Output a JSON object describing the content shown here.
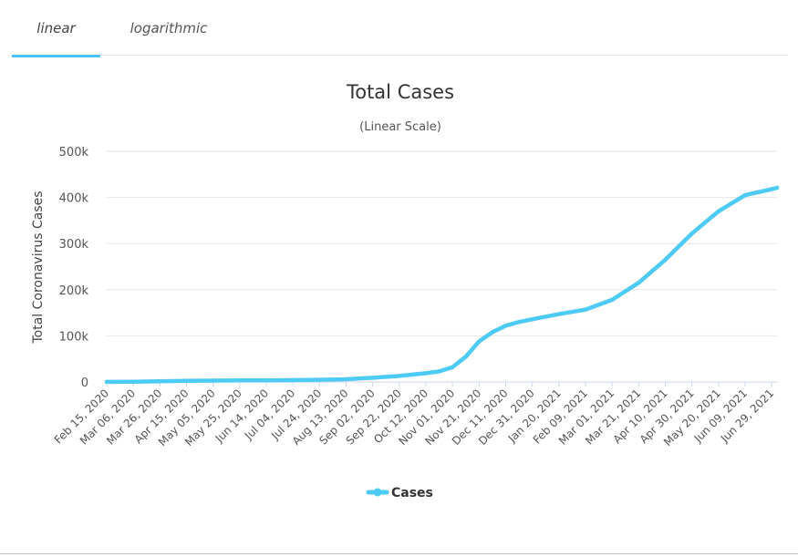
{
  "tabs": [
    {
      "label": "linear",
      "active": true
    },
    {
      "label": "logarithmic",
      "active": false
    }
  ],
  "colors": {
    "series": "#4dcbf5",
    "grid": "#e6e6e6",
    "axis_line": "#ccd6eb",
    "tab_accent": "#4dc3f5"
  },
  "chart_data": {
    "type": "line",
    "title": "Total Cases",
    "subtitle": "(Linear Scale)",
    "ylabel": "Total Coronavirus Cases",
    "xlabel": "",
    "ylim": [
      0,
      500000
    ],
    "y_ticks": [
      {
        "value": 0,
        "label": "0"
      },
      {
        "value": 100000,
        "label": "100k"
      },
      {
        "value": 200000,
        "label": "200k"
      },
      {
        "value": 300000,
        "label": "300k"
      },
      {
        "value": 400000,
        "label": "400k"
      },
      {
        "value": 500000,
        "label": "500k"
      }
    ],
    "x_range": [
      "2020-02-15",
      "2021-07-03"
    ],
    "x_tick_labels": [
      "Feb 15, 2020",
      "Mar 06, 2020",
      "Mar 26, 2020",
      "Apr 15, 2020",
      "May 05, 2020",
      "May 25, 2020",
      "Jun 14, 2020",
      "Jul 04, 2020",
      "Jul 24, 2020",
      "Aug 13, 2020",
      "Sep 02, 2020",
      "Sep 22, 2020",
      "Oct 12, 2020",
      "Nov 01, 2020",
      "Nov 21, 2020",
      "Dec 11, 2020",
      "Dec 31, 2020",
      "Jan 20, 2021",
      "Feb 09, 2021",
      "Mar 01, 2021",
      "Mar 21, 2021",
      "Apr 10, 2021",
      "Apr 30, 2021",
      "May 20, 2021",
      "Jun 09, 2021",
      "Jun 29, 2021"
    ],
    "grid": true,
    "legend_position": "bottom-center",
    "series": [
      {
        "name": "Cases",
        "color": "#4dcbf5",
        "points": [
          {
            "x": "2020-02-15",
            "y": 100
          },
          {
            "x": "2020-03-06",
            "y": 500
          },
          {
            "x": "2020-03-26",
            "y": 1500
          },
          {
            "x": "2020-04-15",
            "y": 2500
          },
          {
            "x": "2020-05-05",
            "y": 3000
          },
          {
            "x": "2020-05-25",
            "y": 3300
          },
          {
            "x": "2020-06-14",
            "y": 3600
          },
          {
            "x": "2020-07-04",
            "y": 4000
          },
          {
            "x": "2020-07-24",
            "y": 4800
          },
          {
            "x": "2020-08-13",
            "y": 6000
          },
          {
            "x": "2020-09-02",
            "y": 9000
          },
          {
            "x": "2020-09-22",
            "y": 13000
          },
          {
            "x": "2020-10-12",
            "y": 19000
          },
          {
            "x": "2020-10-22",
            "y": 23000
          },
          {
            "x": "2020-11-01",
            "y": 32000
          },
          {
            "x": "2020-11-11",
            "y": 55000
          },
          {
            "x": "2020-11-21",
            "y": 88000
          },
          {
            "x": "2020-12-01",
            "y": 108000
          },
          {
            "x": "2020-12-11",
            "y": 122000
          },
          {
            "x": "2020-12-21",
            "y": 130000
          },
          {
            "x": "2020-12-31",
            "y": 136000
          },
          {
            "x": "2021-01-20",
            "y": 147000
          },
          {
            "x": "2021-02-09",
            "y": 157000
          },
          {
            "x": "2021-03-01",
            "y": 178000
          },
          {
            "x": "2021-03-21",
            "y": 215000
          },
          {
            "x": "2021-04-10",
            "y": 265000
          },
          {
            "x": "2021-04-30",
            "y": 322000
          },
          {
            "x": "2021-05-20",
            "y": 370000
          },
          {
            "x": "2021-06-09",
            "y": 405000
          },
          {
            "x": "2021-06-29",
            "y": 418000
          },
          {
            "x": "2021-07-03",
            "y": 421000
          }
        ]
      }
    ]
  }
}
